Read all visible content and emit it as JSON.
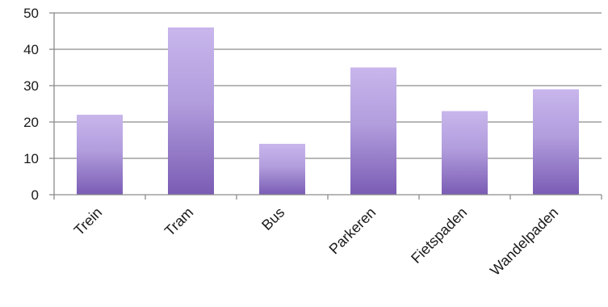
{
  "chart_data": {
    "type": "bar",
    "categories": [
      "Trein",
      "Tram",
      "Bus",
      "Parkeren",
      "Fietspaden",
      "Wandelpaden"
    ],
    "values": [
      22,
      46,
      14,
      35,
      23,
      29
    ],
    "title": "",
    "xlabel": "",
    "ylabel": "",
    "ylim": [
      0,
      50
    ],
    "yticks": [
      0,
      10,
      20,
      30,
      40,
      50
    ],
    "grid": true,
    "legend": "none",
    "x_tick_rotation": -45,
    "colors": {
      "bar_top": "#c8b6ec",
      "bar_bottom": "#7a5cb4",
      "grid": "#8c8c8c",
      "axis": "#8c8c8c"
    }
  }
}
